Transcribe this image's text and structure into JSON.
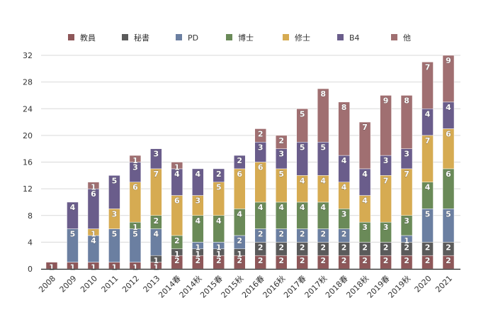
{
  "chart_data": {
    "type": "bar",
    "stacked": true,
    "title": "",
    "xlabel": "",
    "ylabel": "",
    "ylim": [
      0,
      32
    ],
    "yticks": [
      0,
      4,
      8,
      12,
      16,
      20,
      24,
      28,
      32
    ],
    "grid": true,
    "legend_position": "top",
    "categories": [
      "2008",
      "2009",
      "2010",
      "2011",
      "2012",
      "2013",
      "2014春",
      "2014秋",
      "2015春",
      "2015秋",
      "2016春",
      "2016秋",
      "2017春",
      "2017秋",
      "2018春",
      "2018秋",
      "2019春",
      "2019秋",
      "2020",
      "2021"
    ],
    "series": [
      {
        "name": "教員",
        "color": "#8e5759",
        "values": [
          1,
          1,
          1,
          1,
          1,
          1,
          2,
          2,
          2,
          2,
          2,
          2,
          2,
          2,
          2,
          2,
          2,
          2,
          2,
          2
        ]
      },
      {
        "name": "秘書",
        "color": "#5b5b5b",
        "values": [
          0,
          0,
          0,
          0,
          0,
          1,
          1,
          1,
          1,
          1,
          2,
          2,
          2,
          2,
          2,
          2,
          2,
          2,
          2,
          2
        ]
      },
      {
        "name": "PD",
        "color": "#6b7fa1",
        "values": [
          0,
          5,
          4,
          5,
          5,
          4,
          0,
          1,
          1,
          2,
          2,
          2,
          2,
          2,
          2,
          0,
          0,
          1,
          5,
          5
        ]
      },
      {
        "name": "博士",
        "color": "#6a8a58",
        "values": [
          0,
          0,
          0,
          0,
          1,
          2,
          2,
          4,
          4,
          4,
          4,
          4,
          4,
          4,
          3,
          3,
          3,
          3,
          4,
          6
        ]
      },
      {
        "name": "修士",
        "color": "#d6ab52",
        "values": [
          0,
          0,
          1,
          3,
          6,
          7,
          6,
          3,
          5,
          6,
          6,
          5,
          4,
          4,
          4,
          4,
          7,
          7,
          7,
          6
        ]
      },
      {
        "name": "B4",
        "color": "#6a5d8b",
        "values": [
          0,
          4,
          6,
          5,
          3,
          3,
          4,
          4,
          2,
          2,
          3,
          3,
          5,
          5,
          4,
          4,
          3,
          3,
          4,
          4
        ]
      },
      {
        "name": "他",
        "color": "#a06f71",
        "values": [
          0,
          0,
          1,
          0,
          1,
          0,
          1,
          0,
          0,
          0,
          2,
          2,
          5,
          8,
          8,
          7,
          9,
          8,
          7,
          9
        ]
      }
    ]
  }
}
